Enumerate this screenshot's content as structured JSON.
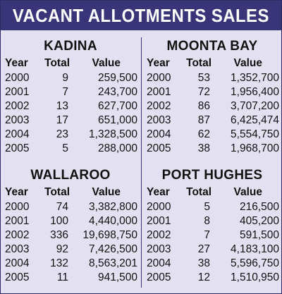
{
  "title": "VACANT ALLOTMENTS SALES",
  "columns": {
    "year": "Year",
    "total": "Total",
    "value": "Value"
  },
  "sections": {
    "kadina": {
      "name": "KADINA",
      "rows": [
        {
          "year": "2000",
          "total": "9",
          "value": "259,500"
        },
        {
          "year": "2001",
          "total": "7",
          "value": "243,700"
        },
        {
          "year": "2002",
          "total": "13",
          "value": "627,700"
        },
        {
          "year": "2003",
          "total": "17",
          "value": "651,000"
        },
        {
          "year": "2004",
          "total": "23",
          "value": "1,328,500"
        },
        {
          "year": "2005",
          "total": "5",
          "value": "288,000"
        }
      ]
    },
    "moonta_bay": {
      "name": "MOONTA BAY",
      "rows": [
        {
          "year": "2000",
          "total": "53",
          "value": "1,352,700"
        },
        {
          "year": "2001",
          "total": "72",
          "value": "1,956,400"
        },
        {
          "year": "2002",
          "total": "86",
          "value": "3,707,200"
        },
        {
          "year": "2003",
          "total": "87",
          "value": "6,425,474"
        },
        {
          "year": "2004",
          "total": "62",
          "value": "5,554,750"
        },
        {
          "year": "2005",
          "total": "38",
          "value": "1,968,700"
        }
      ]
    },
    "wallaroo": {
      "name": "WALLAROO",
      "rows": [
        {
          "year": "2000",
          "total": "74",
          "value": "3,382,800"
        },
        {
          "year": "2001",
          "total": "100",
          "value": "4,440,000"
        },
        {
          "year": "2002",
          "total": "336",
          "value": "19,698,750"
        },
        {
          "year": "2003",
          "total": "92",
          "value": "7,426,500"
        },
        {
          "year": "2004",
          "total": "132",
          "value": "8,563,201"
        },
        {
          "year": "2005",
          "total": "11",
          "value": "941,500"
        }
      ]
    },
    "port_hughes": {
      "name": "PORT HUGHES",
      "rows": [
        {
          "year": "2000",
          "total": "5",
          "value": "216,500"
        },
        {
          "year": "2001",
          "total": "8",
          "value": "405,200"
        },
        {
          "year": "2002",
          "total": "7",
          "value": "591,500"
        },
        {
          "year": "2003",
          "total": "27",
          "value": "4,183,100"
        },
        {
          "year": "2004",
          "total": "38",
          "value": "5,596,750"
        },
        {
          "year": "2005",
          "total": "12",
          "value": "1,510,950"
        }
      ]
    }
  },
  "colors": {
    "banner": "#3a3578",
    "background": "#e3e1f1",
    "text": "#111111"
  }
}
